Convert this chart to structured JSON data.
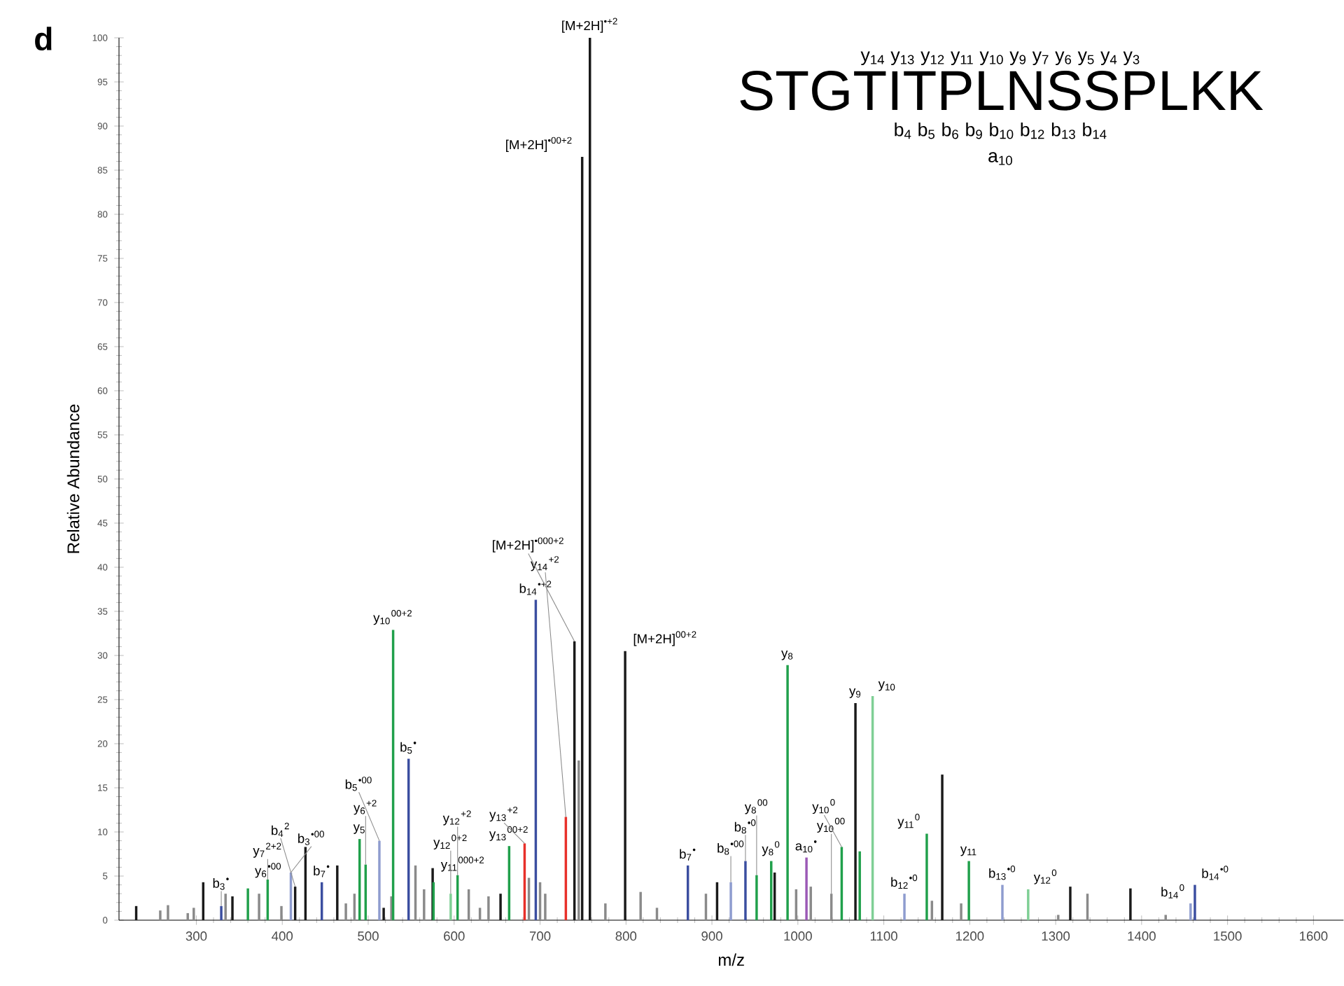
{
  "chart_data": {
    "type": "bar",
    "title": "d",
    "xlabel": "m/z",
    "ylabel": "Relative Abundance",
    "xlim": [
      210,
      1635
    ],
    "ylim": [
      0,
      100
    ],
    "xticks": [
      300,
      400,
      500,
      600,
      700,
      800,
      900,
      1000,
      1100,
      1200,
      1300,
      1400,
      1500,
      1600
    ],
    "yticks": [
      0,
      5,
      10,
      15,
      20,
      25,
      30,
      35,
      40,
      45,
      50,
      55,
      60,
      65,
      70,
      75,
      80,
      85,
      90,
      95,
      100
    ],
    "series": [
      {
        "color": "#8a8a8a",
        "x": [
          258,
          267,
          290,
          297,
          334,
          373,
          399,
          474,
          484,
          527,
          555,
          565,
          617,
          630,
          640,
          687,
          700,
          706,
          745,
          776,
          817,
          836,
          893,
          998,
          1015,
          1039,
          1156,
          1190,
          1303,
          1337,
          1428
        ],
        "values": [
          1.1,
          1.7,
          0.8,
          1.4,
          3.0,
          3.0,
          1.6,
          1.9,
          3.0,
          2.7,
          6.2,
          3.5,
          3.5,
          1.4,
          2.7,
          4.8,
          4.3,
          3.0,
          18.1,
          1.9,
          3.2,
          1.4,
          3.0,
          3.5,
          3.8,
          3.0,
          2.2,
          1.9,
          0.6,
          3.0,
          0.6
        ]
      },
      {
        "color": "#1a1a1a",
        "x": [
          230,
          308,
          342,
          415,
          427,
          464,
          518,
          575,
          654,
          740,
          749,
          758,
          799,
          906,
          973,
          1067,
          1168,
          1317,
          1387
        ],
        "values": [
          1.6,
          4.3,
          2.7,
          3.8,
          8.3,
          6.2,
          1.4,
          5.9,
          3.0,
          31.6,
          86.5,
          100,
          30.5,
          4.3,
          5.4,
          24.6,
          16.5,
          3.8,
          3.6
        ]
      },
      {
        "color": "#20a04b",
        "x": [
          360,
          383,
          490,
          497,
          529,
          576,
          604,
          664,
          952,
          969,
          988,
          1051,
          1072,
          1150,
          1199
        ],
        "values": [
          3.6,
          4.6,
          9.2,
          6.3,
          32.9,
          4.3,
          5.1,
          8.4,
          5.1,
          6.7,
          28.9,
          8.3,
          7.8,
          9.8,
          6.7
        ]
      },
      {
        "color": "#7fcf95",
        "x": [
          596,
          1087,
          1268
        ],
        "values": [
          3.0,
          25.4,
          3.5
        ]
      },
      {
        "color": "#3b4ea0",
        "x": [
          329,
          446,
          547,
          695,
          872,
          939,
          1462
        ],
        "values": [
          1.6,
          4.3,
          18.3,
          36.3,
          6.2,
          6.7,
          4.0
        ]
      },
      {
        "color": "#8e9ccf",
        "x": [
          410,
          513,
          922,
          1124,
          1238,
          1457
        ],
        "values": [
          5.4,
          9.0,
          4.3,
          3.0,
          4.0,
          1.9
        ]
      },
      {
        "color": "#e8302a",
        "x": [
          682,
          730
        ],
        "values": [
          8.7,
          11.7
        ]
      },
      {
        "color": "#9b59b6",
        "x": [
          1010
        ],
        "values": [
          7.1
        ]
      }
    ],
    "annotations": [
      {
        "text": "b$_{3}$$^{•}$",
        "x": 329,
        "y": 1.6
      },
      {
        "text": "y$_{6}$$^{•00}$",
        "x": 360,
        "y": 3.6
      },
      {
        "text": "y$_{7}$$^{2+2}$",
        "x": 383,
        "y": 4.6
      },
      {
        "text": "b$_{3}$$^{•00}$",
        "x": 410,
        "y": 5.4
      },
      {
        "text": "b$_{4}$$^{2}$",
        "x": 415,
        "y": 3.8
      },
      {
        "text": "b$_{7}$$^{•}$",
        "x": 446,
        "y": 4.3
      },
      {
        "text": "y$_{5}$",
        "x": 490,
        "y": 9.2
      },
      {
        "text": "y$_{6}$$^{+2}$",
        "x": 497,
        "y": 6.3
      },
      {
        "text": "b$_{5}$$^{•00}$",
        "x": 513,
        "y": 9.0
      },
      {
        "text": "y$_{10}$$^{00+2}$",
        "x": 529,
        "y": 32.9
      },
      {
        "text": "b$_{5}$$^{•}$",
        "x": 547,
        "y": 18.3
      },
      {
        "text": "y$_{11}$$^{000+2}$",
        "x": 576,
        "y": 4.3
      },
      {
        "text": "y$_{12}$$^{0+2}$",
        "x": 596,
        "y": 3.0
      },
      {
        "text": "y$_{12}$$^{+2}$",
        "x": 604,
        "y": 5.1
      },
      {
        "text": "y$_{13}$$^{00+2}$",
        "x": 664,
        "y": 8.4
      },
      {
        "text": "y$_{13}$$^{+2}$",
        "x": 682,
        "y": 8.7
      },
      {
        "text": "b$_{14}$$^{•+2}$",
        "x": 695,
        "y": 36.3
      },
      {
        "text": "y$_{14}$$^{+2}$",
        "x": 730,
        "y": 11.7
      },
      {
        "text": "[M+2H]$^{•000+2}$",
        "x": 740,
        "y": 31.6
      },
      {
        "text": "[M+2H]$^{•00+2}$",
        "x": 749,
        "y": 86.5
      },
      {
        "text": "[M+2H]$^{•+2}$",
        "x": 758,
        "y": 100
      },
      {
        "text": "[M+2H]$^{00+2}$",
        "x": 799,
        "y": 30.5
      },
      {
        "text": "b$_{7}$$^{•}$",
        "x": 872,
        "y": 6.2
      },
      {
        "text": "b$_{8}$$^{•00}$",
        "x": 922,
        "y": 4.3
      },
      {
        "text": "b$_{8}$$^{•0}$",
        "x": 939,
        "y": 6.7
      },
      {
        "text": "y$_{8}$$^{00}$",
        "x": 952,
        "y": 5.1
      },
      {
        "text": "y$_{8}$$^{0}$",
        "x": 969,
        "y": 6.7
      },
      {
        "text": "y$_{8}$",
        "x": 988,
        "y": 28.9
      },
      {
        "text": "a$_{10}$$^{•}$",
        "x": 1010,
        "y": 7.1
      },
      {
        "text": "y$_{10}$$^{00}$",
        "x": 1039,
        "y": 3.0
      },
      {
        "text": "y$_{10}$$^{0}$",
        "x": 1051,
        "y": 8.3
      },
      {
        "text": "y$_{9}$",
        "x": 1067,
        "y": 24.6
      },
      {
        "text": "y$_{10}$",
        "x": 1087,
        "y": 25.4
      },
      {
        "text": "b$_{12}$$^{•0}$",
        "x": 1124,
        "y": 3.0
      },
      {
        "text": "y$_{11}$$^{0}$",
        "x": 1150,
        "y": 9.8
      },
      {
        "text": "y$_{11}$",
        "x": 1199,
        "y": 6.7
      },
      {
        "text": "b$_{13}$$^{•0}$",
        "x": 1238,
        "y": 4.0
      },
      {
        "text": "y$_{12}$$^{0}$",
        "x": 1268,
        "y": 3.5
      },
      {
        "text": "b$_{14}$$^{0}$",
        "x": 1457,
        "y": 1.9
      },
      {
        "text": "b$_{14}$$^{•0}$",
        "x": 1462,
        "y": 4.0
      },
      "y$_{14}$ y$_{13}$ y$_{12}$ y$_{11}$ y$_{10}$ y$_{9}$ y$_{7}$ y$_{6}$ y$_{5}$ y$_{4}$ y$_{3}$",
      "STGTITPLNSSPLKK",
      "b$_{4}$ b$_{5}$ b$_{6}$ b$_{9}$ b$_{10}$ b$_{12}$ b$_{13}$ b$_{14}$",
      "a$_{10}$"
    ]
  }
}
